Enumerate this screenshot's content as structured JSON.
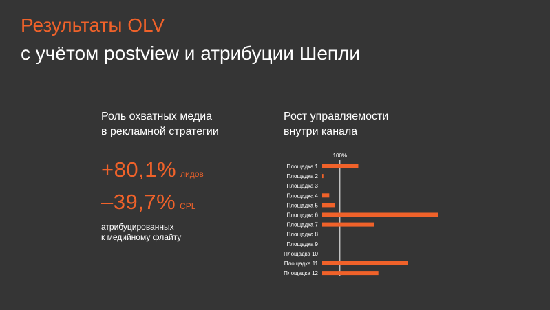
{
  "slide": {
    "title": "Результаты OLV",
    "subtitle": "с учётом postview и атрибуции Шепли"
  },
  "left_block": {
    "heading_line1": "Роль охватных медиа",
    "heading_line2": "в рекламной стратегии",
    "stat1_value": "+80,1%",
    "stat1_unit": "лидов",
    "stat2_value": "–39,7%",
    "stat2_unit": "CPL",
    "note_line1": "атрибуцированных",
    "note_line2": "к медийному флайту"
  },
  "right_block": {
    "heading_line1": "Рост управляемости",
    "heading_line2": "внутри канала"
  },
  "colors": {
    "background": "#353535",
    "accent": "#f0622a",
    "text": "#ffffff"
  },
  "chart_data": {
    "type": "bar",
    "orientation": "horizontal",
    "reference_label": "100%",
    "reference_value": 100,
    "categories": [
      "Площадка 1",
      "Площадка 2",
      "Площадка 3",
      "Площадка 4",
      "Площадка 5",
      "Площадка 6",
      "Площадка 7",
      "Площадка 8",
      "Площадка 9",
      "Площадка 10",
      "Площадка 11",
      "Площадка 12"
    ],
    "values": [
      131,
      72,
      70,
      82,
      91,
      266,
      158,
      70,
      70,
      70,
      215,
      165
    ],
    "xlim": [
      70,
      270
    ]
  }
}
